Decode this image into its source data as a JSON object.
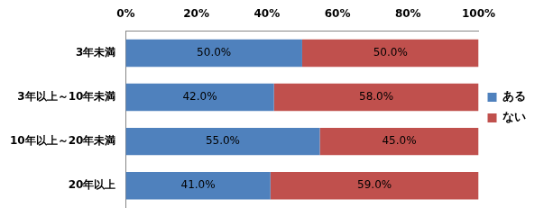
{
  "chart_data": {
    "type": "bar",
    "orientation": "horizontal",
    "stacked": true,
    "categories": [
      "3年未満",
      "3年以上～10年未満",
      "10年以上～20年未満",
      "20年以上"
    ],
    "series": [
      {
        "name": "ある",
        "color": "#4f81bd",
        "values": [
          50,
          42,
          55,
          41
        ],
        "value_labels": [
          "50.0%",
          "42.0%",
          "55.0%",
          "41.0%"
        ]
      },
      {
        "name": "ない",
        "color": "#c0504d",
        "values": [
          50,
          58,
          45,
          59
        ],
        "value_labels": [
          "50.0%",
          "58.0%",
          "45.0%",
          "59.0%"
        ]
      }
    ],
    "xlim": [
      0,
      100
    ],
    "xticks": [
      {
        "value": 0,
        "label": "0%"
      },
      {
        "value": 20,
        "label": "20%"
      },
      {
        "value": 40,
        "label": "40%"
      },
      {
        "value": 60,
        "label": "60%"
      },
      {
        "value": 80,
        "label": "80%"
      },
      {
        "value": 100,
        "label": "100%"
      }
    ],
    "grid": false,
    "legend": "right",
    "data_labels": true
  }
}
